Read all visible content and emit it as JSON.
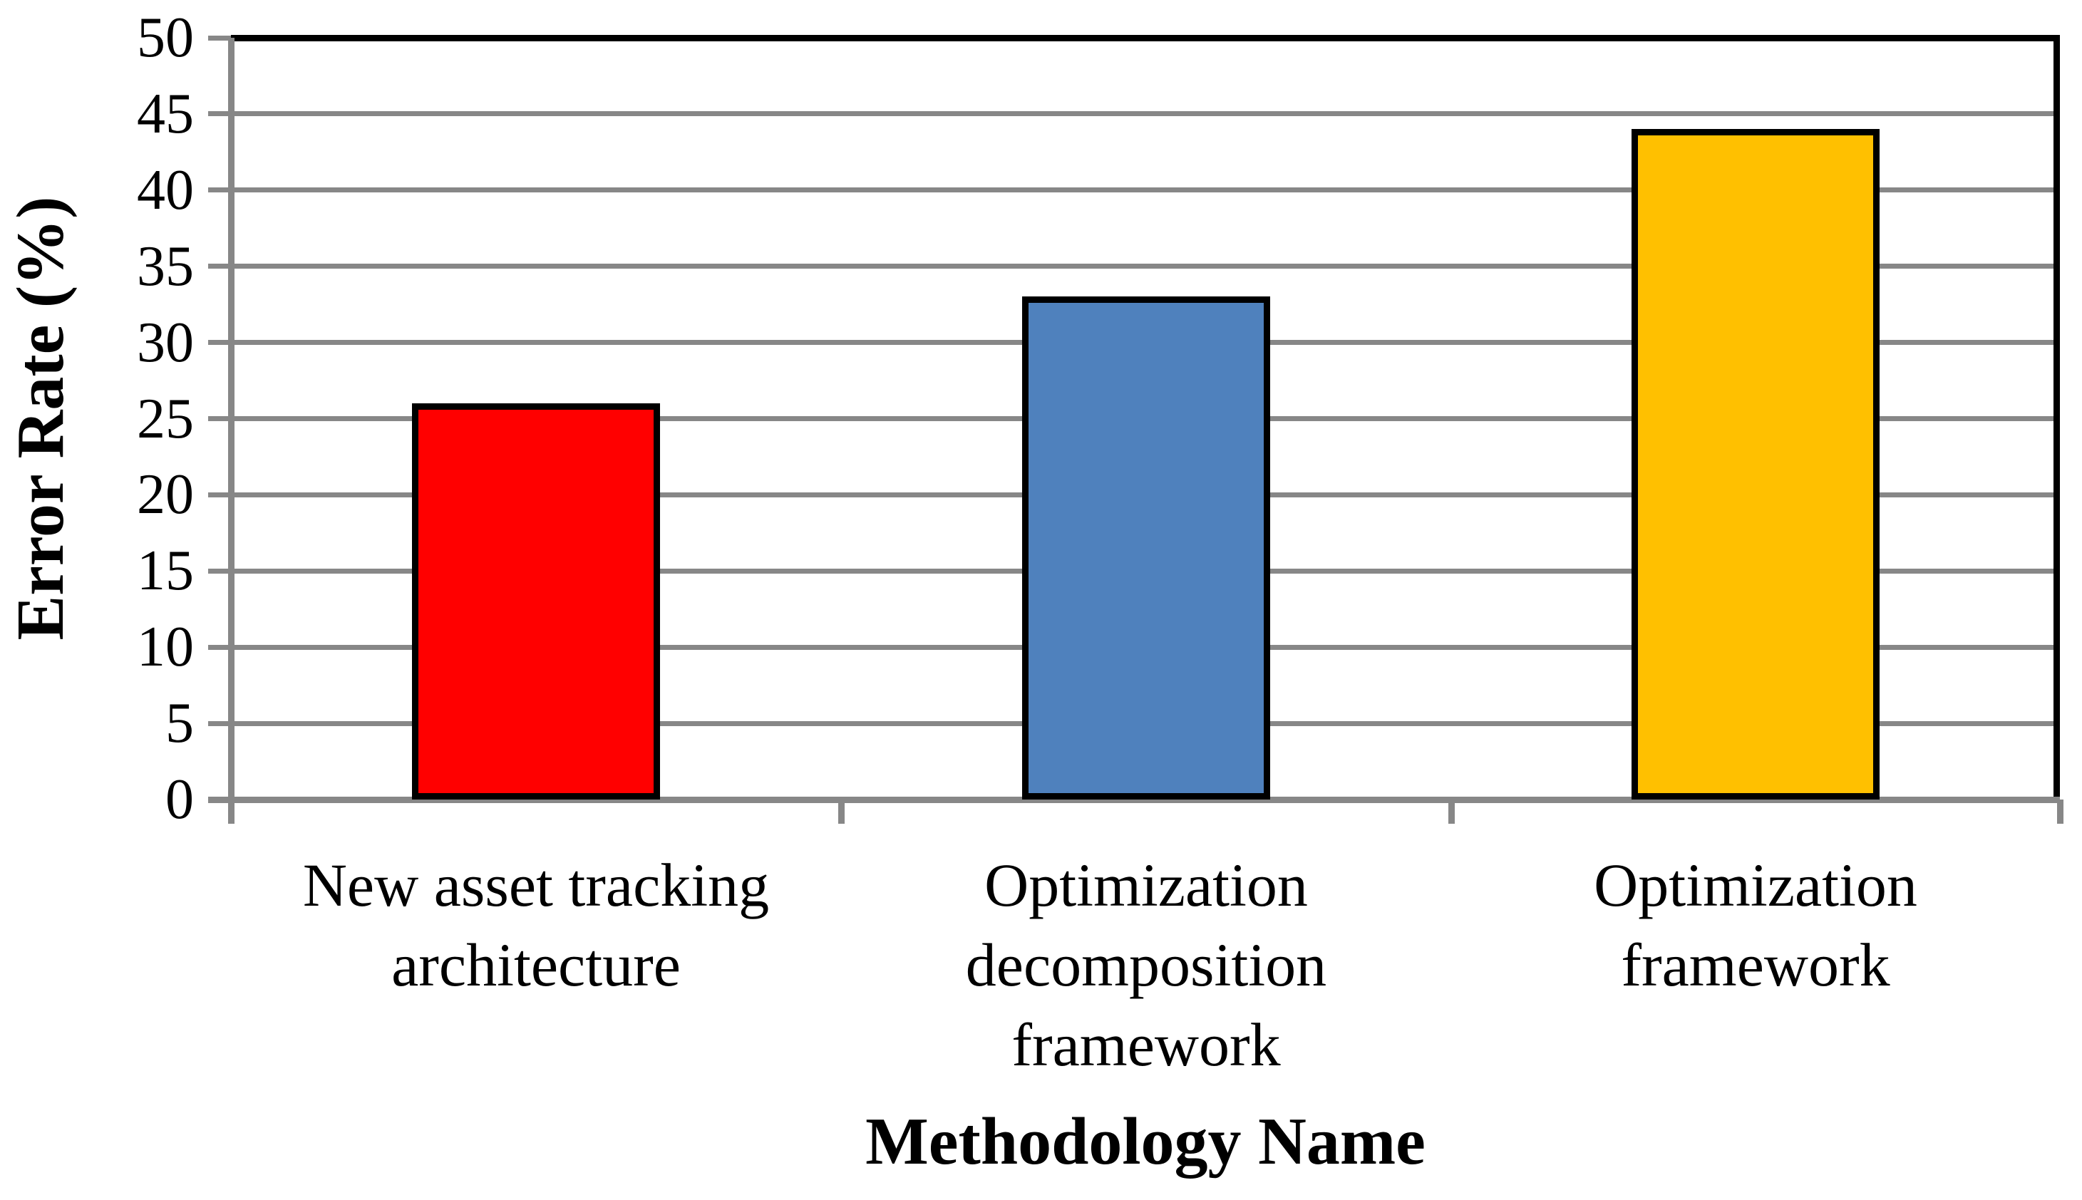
{
  "chart_data": {
    "type": "bar",
    "title": "",
    "xlabel": "Methodology Name",
    "ylabel": "Error Rate (%)",
    "categories": [
      "New asset tracking architecture",
      "Optimization decomposition framework",
      "Optimization framework"
    ],
    "category_label_lines": [
      [
        "New asset tracking",
        "architecture"
      ],
      [
        "Optimization",
        "decomposition",
        "framework"
      ],
      [
        "Optimization",
        "framework"
      ]
    ],
    "values": [
      26,
      33,
      44
    ],
    "bar_colors": [
      "#FF0000",
      "#4F81BD",
      "#FFC000"
    ],
    "bar_border_color": "#000000",
    "ylim": [
      0,
      50
    ],
    "ytick_step": 5,
    "ytick_labels": [
      "0",
      "5",
      "10",
      "15",
      "20",
      "25",
      "30",
      "35",
      "40",
      "45",
      "50"
    ],
    "grid": true,
    "gridline_color": "#878787",
    "axis_line_color": "#878787",
    "plot_border_color": "#000000",
    "legend_position": "none"
  }
}
